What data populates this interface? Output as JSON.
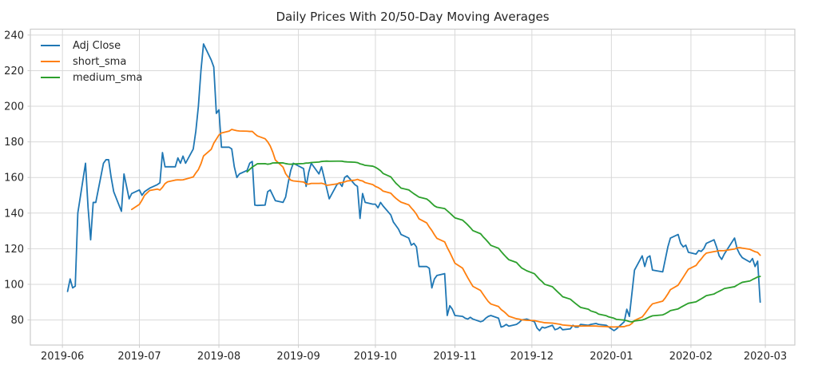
{
  "chart_data": {
    "type": "line",
    "title": "Daily Prices With 20/50-Day Moving Averages",
    "xlabel": "",
    "ylabel": "",
    "grid": true,
    "legend_position": "upper-left",
    "axis_color": "#cccccc",
    "grid_color": "#d9d9d9",
    "text_color": "#262626",
    "xlim": [
      "2019-05-19T12:00:00Z",
      "2020-03-12T12:00:00Z"
    ],
    "ylim": [
      65.9,
      243.3
    ],
    "y_ticks": [
      80,
      100,
      120,
      140,
      160,
      180,
      200,
      220,
      240
    ],
    "x_tick_dates": [
      "2019-06-01",
      "2019-07-01",
      "2019-08-01",
      "2019-09-01",
      "2019-10-01",
      "2019-11-01",
      "2019-12-01",
      "2020-01-01",
      "2020-02-01",
      "2020-03-01"
    ],
    "x_tick_labels": [
      "2019-06",
      "2019-07",
      "2019-08",
      "2019-09",
      "2019-10",
      "2019-11",
      "2019-12",
      "2020-01",
      "2020-02",
      "2020-03"
    ],
    "series": [
      {
        "name": "Adj Close",
        "color": "#1f77b4",
        "dates": [
          "2019-06-03",
          "2019-06-04",
          "2019-06-05",
          "2019-06-06",
          "2019-06-07",
          "2019-06-10",
          "2019-06-11",
          "2019-06-12",
          "2019-06-13",
          "2019-06-14",
          "2019-06-17",
          "2019-06-18",
          "2019-06-19",
          "2019-06-20",
          "2019-06-21",
          "2019-06-24",
          "2019-06-25",
          "2019-06-26",
          "2019-06-27",
          "2019-06-28",
          "2019-07-01",
          "2019-07-02",
          "2019-07-03",
          "2019-07-05",
          "2019-07-08",
          "2019-07-09",
          "2019-07-10",
          "2019-07-11",
          "2019-07-12",
          "2019-07-15",
          "2019-07-16",
          "2019-07-17",
          "2019-07-18",
          "2019-07-19",
          "2019-07-22",
          "2019-07-23",
          "2019-07-24",
          "2019-07-25",
          "2019-07-26",
          "2019-07-29",
          "2019-07-30",
          "2019-07-31",
          "2019-08-01",
          "2019-08-02",
          "2019-08-05",
          "2019-08-06",
          "2019-08-07",
          "2019-08-08",
          "2019-08-09",
          "2019-08-12",
          "2019-08-13",
          "2019-08-14",
          "2019-08-15",
          "2019-08-16",
          "2019-08-19",
          "2019-08-20",
          "2019-08-21",
          "2019-08-22",
          "2019-08-23",
          "2019-08-26",
          "2019-08-27",
          "2019-08-28",
          "2019-08-29",
          "2019-08-30",
          "2019-09-03",
          "2019-09-04",
          "2019-09-05",
          "2019-09-06",
          "2019-09-09",
          "2019-09-10",
          "2019-09-11",
          "2019-09-12",
          "2019-09-13",
          "2019-09-16",
          "2019-09-17",
          "2019-09-18",
          "2019-09-19",
          "2019-09-20",
          "2019-09-23",
          "2019-09-24",
          "2019-09-25",
          "2019-09-26",
          "2019-09-27",
          "2019-09-30",
          "2019-10-01",
          "2019-10-02",
          "2019-10-03",
          "2019-10-04",
          "2019-10-07",
          "2019-10-08",
          "2019-10-09",
          "2019-10-10",
          "2019-10-11",
          "2019-10-14",
          "2019-10-15",
          "2019-10-16",
          "2019-10-17",
          "2019-10-18",
          "2019-10-21",
          "2019-10-22",
          "2019-10-23",
          "2019-10-24",
          "2019-10-25",
          "2019-10-28",
          "2019-10-29",
          "2019-10-30",
          "2019-10-31",
          "2019-11-01",
          "2019-11-04",
          "2019-11-05",
          "2019-11-06",
          "2019-11-07",
          "2019-11-08",
          "2019-11-11",
          "2019-11-12",
          "2019-11-13",
          "2019-11-14",
          "2019-11-15",
          "2019-11-18",
          "2019-11-19",
          "2019-11-20",
          "2019-11-21",
          "2019-11-22",
          "2019-11-25",
          "2019-11-26",
          "2019-11-27",
          "2019-11-29",
          "2019-12-02",
          "2019-12-03",
          "2019-12-04",
          "2019-12-05",
          "2019-12-06",
          "2019-12-09",
          "2019-12-10",
          "2019-12-11",
          "2019-12-12",
          "2019-12-13",
          "2019-12-16",
          "2019-12-17",
          "2019-12-18",
          "2019-12-19",
          "2019-12-20",
          "2019-12-23",
          "2019-12-24",
          "2019-12-26",
          "2019-12-27",
          "2019-12-30",
          "2019-12-31",
          "2020-01-02",
          "2020-01-03",
          "2020-01-06",
          "2020-01-07",
          "2020-01-08",
          "2020-01-09",
          "2020-01-10",
          "2020-01-13",
          "2020-01-14",
          "2020-01-15",
          "2020-01-16",
          "2020-01-17",
          "2020-01-21",
          "2020-01-22",
          "2020-01-23",
          "2020-01-24",
          "2020-01-27",
          "2020-01-28",
          "2020-01-29",
          "2020-01-30",
          "2020-01-31",
          "2020-02-03",
          "2020-02-04",
          "2020-02-05",
          "2020-02-06",
          "2020-02-07",
          "2020-02-10",
          "2020-02-11",
          "2020-02-12",
          "2020-02-13",
          "2020-02-14",
          "2020-02-18",
          "2020-02-19",
          "2020-02-20",
          "2020-02-21",
          "2020-02-24",
          "2020-02-25",
          "2020-02-26",
          "2020-02-27",
          "2020-02-28"
        ],
        "values": [
          96,
          103,
          98,
          99,
          140,
          168,
          143,
          125,
          146,
          146,
          168,
          170,
          170,
          160,
          152,
          141,
          162,
          155,
          148,
          151,
          153,
          150,
          152,
          154,
          156,
          157,
          174,
          166,
          166,
          166,
          171,
          168,
          172,
          168,
          176,
          186,
          200,
          220,
          235,
          226,
          222,
          196,
          198,
          177,
          177,
          176,
          166,
          160,
          162,
          164,
          168,
          169,
          144.5,
          144.3,
          144.5,
          152,
          153,
          150,
          147,
          146,
          149,
          157,
          164,
          168,
          165,
          155,
          163,
          168,
          162,
          166,
          160,
          154,
          148,
          156,
          157,
          155,
          160,
          161,
          156,
          155,
          137,
          151,
          146,
          145,
          145,
          143,
          146,
          144,
          139,
          135,
          133,
          131,
          128,
          126,
          122,
          123,
          121,
          110,
          110,
          109,
          98,
          103,
          105,
          106,
          82.5,
          88,
          86,
          82.5,
          82,
          81,
          80.5,
          81.5,
          80.5,
          79,
          79.5,
          81,
          82,
          82.5,
          81,
          76,
          76.5,
          77.5,
          76.5,
          77.5,
          78.5,
          80,
          80.5,
          79,
          75.5,
          74,
          76,
          75.5,
          77,
          74.5,
          75,
          76,
          74.5,
          75,
          77,
          76,
          76,
          77.5,
          77,
          77.5,
          78,
          77.5,
          77,
          76,
          74,
          75,
          79,
          86,
          82,
          95,
          108,
          116,
          110,
          115,
          116,
          108,
          107,
          114,
          121,
          126,
          128,
          123,
          121,
          122,
          118,
          117,
          119,
          118.5,
          120,
          123,
          125,
          121,
          116,
          114,
          117,
          126,
          120,
          117,
          115,
          112.5,
          114.5,
          110,
          113,
          90
        ]
      },
      {
        "name": "short_sma",
        "color": "#ff7f0e",
        "derived": "sma_of_adj_close",
        "window": 20
      },
      {
        "name": "medium_sma",
        "color": "#2ca02c",
        "derived": "sma_of_adj_close",
        "window": 50
      }
    ]
  }
}
